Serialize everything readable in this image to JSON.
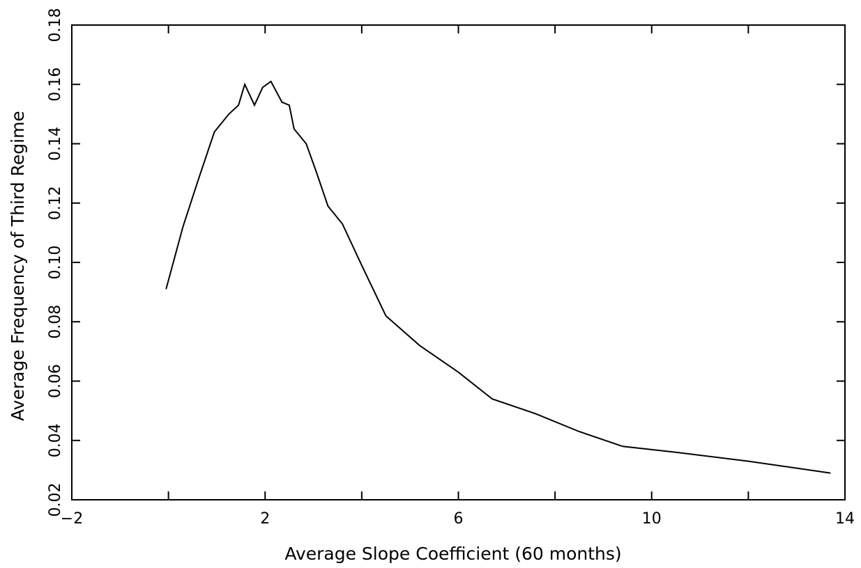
{
  "chart_data": {
    "type": "line",
    "title": "",
    "xlabel": "Average Slope Coefficient (60 months)",
    "ylabel": "Average Frequency of Third Regime",
    "xlim": [
      -2,
      14
    ],
    "ylim": [
      0.02,
      0.18
    ],
    "x_ticks": [
      -2,
      0,
      2,
      4,
      6,
      8,
      10,
      12,
      14
    ],
    "x_tick_labels": [
      "−2",
      "",
      "2",
      "",
      "6",
      "",
      "10",
      "",
      "14"
    ],
    "y_ticks": [
      0.02,
      0.04,
      0.06,
      0.08,
      0.1,
      0.12,
      0.14,
      0.16,
      0.18
    ],
    "y_tick_labels": [
      "0.02",
      "0.04",
      "0.06",
      "0.08",
      "0.10",
      "0.12",
      "0.14",
      "0.16",
      "0.18"
    ],
    "grid": false,
    "legend": "none",
    "series": [
      {
        "color": "#000000",
        "x": [
          -0.05,
          0.3,
          0.6,
          0.95,
          1.25,
          1.45,
          1.58,
          1.78,
          1.95,
          2.12,
          2.35,
          2.5,
          2.6,
          2.85,
          3.05,
          3.3,
          3.6,
          4.0,
          4.5,
          5.2,
          6.0,
          6.7,
          7.6,
          8.5,
          9.4,
          10.5,
          12.0,
          13.7
        ],
        "y": [
          0.091,
          0.112,
          0.127,
          0.144,
          0.15,
          0.153,
          0.16,
          0.153,
          0.159,
          0.161,
          0.154,
          0.153,
          0.145,
          0.14,
          0.131,
          0.119,
          0.113,
          0.099,
          0.082,
          0.072,
          0.063,
          0.054,
          0.049,
          0.043,
          0.038,
          0.036,
          0.033,
          0.029
        ]
      }
    ]
  }
}
